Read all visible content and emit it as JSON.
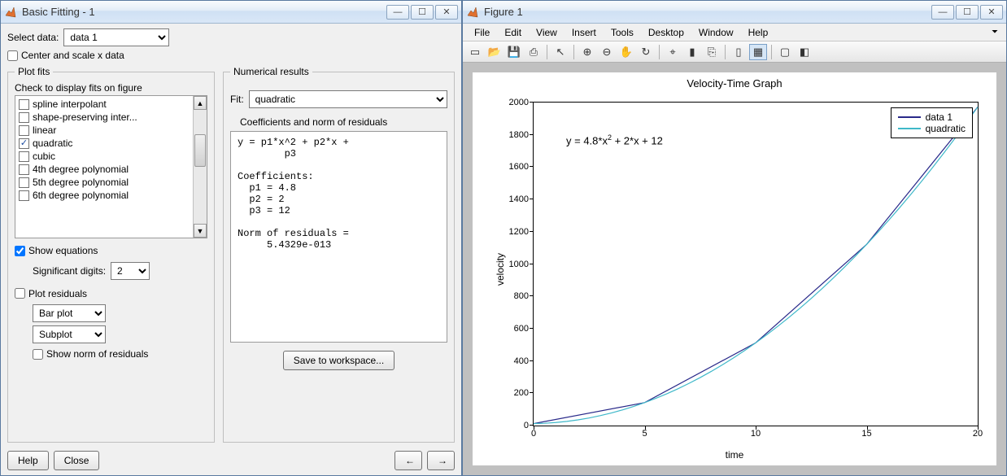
{
  "left_window": {
    "title": "Basic Fitting - 1",
    "select_data_label": "Select data:",
    "select_data_value": "data 1",
    "center_scale_label": "Center and scale x data",
    "center_scale_checked": false,
    "plot_fits_legend": "Plot fits",
    "check_display_label": "Check to display fits on figure",
    "fits": [
      {
        "label": "spline interpolant",
        "checked": false
      },
      {
        "label": "shape-preserving inter...",
        "checked": false
      },
      {
        "label": "linear",
        "checked": false
      },
      {
        "label": "quadratic",
        "checked": true
      },
      {
        "label": "cubic",
        "checked": false
      },
      {
        "label": "4th degree polynomial",
        "checked": false
      },
      {
        "label": "5th degree polynomial",
        "checked": false
      },
      {
        "label": "6th degree polynomial",
        "checked": false
      }
    ],
    "show_eq_label": "Show equations",
    "show_eq_checked": true,
    "sig_digits_label": "Significant digits:",
    "sig_digits_value": "2",
    "plot_resid_label": "Plot residuals",
    "plot_resid_checked": false,
    "resid_type_value": "Bar plot",
    "resid_loc_value": "Subplot",
    "show_norm_label": "Show norm of residuals",
    "show_norm_checked": false,
    "numerical_legend": "Numerical results",
    "fit_label": "Fit:",
    "fit_value": "quadratic",
    "coef_header": "Coefficients and norm of residuals",
    "results_text": "y = p1*x^2 + p2*x +\n        p3\n\nCoefficients:\n  p1 = 4.8\n  p2 = 2\n  p3 = 12\n\nNorm of residuals =\n     5.4329e-013",
    "save_btn": "Save to workspace...",
    "help_btn": "Help",
    "close_btn": "Close",
    "prev_arrow": "←",
    "next_arrow": "→"
  },
  "right_window": {
    "title": "Figure 1",
    "menus": [
      "File",
      "Edit",
      "View",
      "Insert",
      "Tools",
      "Desktop",
      "Window",
      "Help"
    ],
    "toolbar_icons": [
      {
        "name": "new-icon",
        "glyph": "▭"
      },
      {
        "name": "open-icon",
        "glyph": "📂"
      },
      {
        "name": "save-icon",
        "glyph": "💾"
      },
      {
        "name": "print-icon",
        "glyph": "⎙"
      },
      {
        "name": "sep"
      },
      {
        "name": "pointer-icon",
        "glyph": "↖"
      },
      {
        "name": "sep"
      },
      {
        "name": "zoom-in-icon",
        "glyph": "⊕"
      },
      {
        "name": "zoom-out-icon",
        "glyph": "⊖"
      },
      {
        "name": "pan-icon",
        "glyph": "✋"
      },
      {
        "name": "rotate-icon",
        "glyph": "↻"
      },
      {
        "name": "sep"
      },
      {
        "name": "data-cursor-icon",
        "glyph": "⌖"
      },
      {
        "name": "brush-icon",
        "glyph": "▮"
      },
      {
        "name": "link-icon",
        "glyph": "⎘"
      },
      {
        "name": "sep"
      },
      {
        "name": "colorbar-icon",
        "glyph": "▯"
      },
      {
        "name": "legend-icon",
        "glyph": "▦",
        "active": true
      },
      {
        "name": "sep"
      },
      {
        "name": "hide-tools-icon",
        "glyph": "▢"
      },
      {
        "name": "dock-icon",
        "glyph": "◧"
      }
    ]
  },
  "chart": {
    "title": "Velocity-Time Graph",
    "xlabel": "time",
    "ylabel": "velocity",
    "xlim": [
      0,
      20
    ],
    "ylim": [
      0,
      2000
    ],
    "xticks": [
      0,
      5,
      10,
      15,
      20
    ],
    "yticks": [
      0,
      200,
      400,
      600,
      800,
      1000,
      1200,
      1400,
      1600,
      1800,
      2000
    ],
    "equation_html": "y = 4.8*x<sup>2</sup> + 2*x + 12",
    "background_color": "#ffffff",
    "axes_color": "#000000",
    "legend": [
      {
        "label": "data 1",
        "color": "#2a2a8a"
      },
      {
        "label": "quadratic",
        "color": "#3fb8c9"
      }
    ],
    "series": [
      {
        "name": "data 1",
        "color": "#2a2a8a",
        "width": 1.2,
        "xs": [
          0,
          5,
          10,
          15,
          20
        ],
        "ys": [
          12,
          142,
          512,
          1122,
          1972
        ]
      },
      {
        "name": "quadratic",
        "color": "#3fb8c9",
        "width": 1.2,
        "xs": [
          0,
          0.5,
          1,
          1.5,
          2,
          2.5,
          3,
          3.5,
          4,
          4.5,
          5,
          5.5,
          6,
          6.5,
          7,
          7.5,
          8,
          8.5,
          9,
          9.5,
          10,
          10.5,
          11,
          11.5,
          12,
          12.5,
          13,
          13.5,
          14,
          14.5,
          15,
          15.5,
          16,
          16.5,
          17,
          17.5,
          18,
          18.5,
          19,
          19.5,
          20
        ],
        "ys": [
          12,
          14.2,
          18.8,
          25.8,
          35.2,
          47,
          61.2,
          77.8,
          96.8,
          118.2,
          142,
          168.2,
          196.8,
          227.8,
          261.2,
          297,
          335.2,
          375.8,
          418.8,
          464.2,
          512,
          562.2,
          614.8,
          669.8,
          727.2,
          787,
          849.2,
          913.8,
          980.8,
          1050.2,
          1122,
          1196.2,
          1272.8,
          1351.8,
          1433.2,
          1517,
          1603.2,
          1691.8,
          1782.8,
          1876.2,
          1972
        ]
      }
    ]
  }
}
